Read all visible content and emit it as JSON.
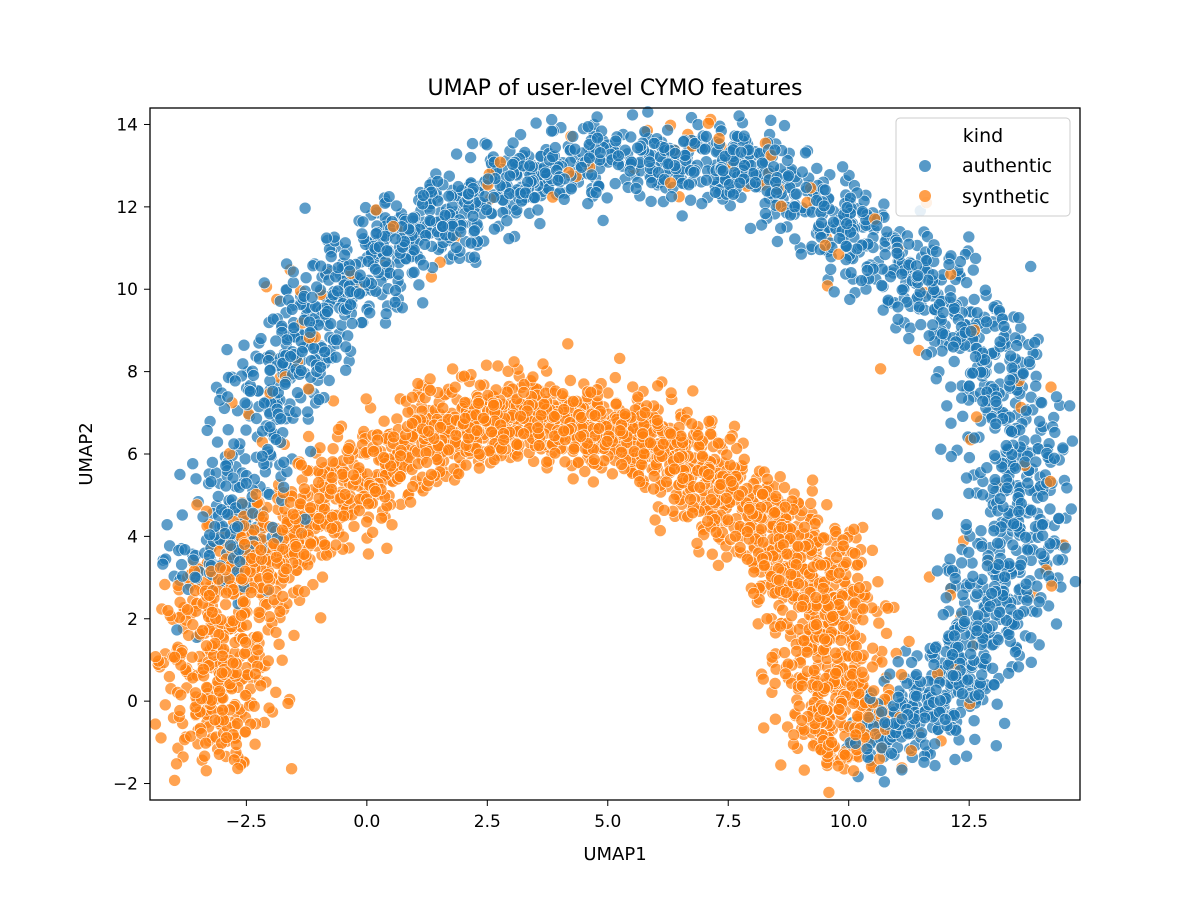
{
  "chart_data": {
    "type": "scatter",
    "title": "UMAP of user-level CYMO features",
    "xlabel": "UMAP1",
    "ylabel": "UMAP2",
    "xlim": [
      -4.5,
      14.8
    ],
    "ylim": [
      -2.4,
      14.4
    ],
    "x_ticks": [
      -2.5,
      0.0,
      2.5,
      5.0,
      7.5,
      10.0,
      12.5
    ],
    "x_tick_labels": [
      "−2.5",
      "0.0",
      "2.5",
      "5.0",
      "7.5",
      "10.0",
      "12.5"
    ],
    "y_ticks": [
      -2,
      0,
      2,
      4,
      6,
      8,
      10,
      12,
      14
    ],
    "y_tick_labels": [
      "−2",
      "0",
      "2",
      "4",
      "6",
      "8",
      "10",
      "12",
      "14"
    ],
    "grid": false,
    "legend": {
      "title": "kind",
      "placement": "top-right"
    },
    "series": [
      {
        "name": "authentic",
        "color": "#1f77b4",
        "approx_count": 2400,
        "clusters": [
          {
            "x": -3.3,
            "y": 2.8
          },
          {
            "x": -2.6,
            "y": 4.4
          },
          {
            "x": -2.2,
            "y": 7.2
          },
          {
            "x": -1.4,
            "y": 8.6
          },
          {
            "x": -0.6,
            "y": 10.0
          },
          {
            "x": 0.6,
            "y": 11.0
          },
          {
            "x": 1.6,
            "y": 11.7
          },
          {
            "x": 3.0,
            "y": 12.6
          },
          {
            "x": 4.5,
            "y": 13.2
          },
          {
            "x": 6.0,
            "y": 13.2
          },
          {
            "x": 7.5,
            "y": 13.0
          },
          {
            "x": 8.8,
            "y": 12.5
          },
          {
            "x": 10.0,
            "y": 11.6
          },
          {
            "x": 11.2,
            "y": 10.5
          },
          {
            "x": 12.3,
            "y": 9.3
          },
          {
            "x": 13.2,
            "y": 7.8
          },
          {
            "x": 13.6,
            "y": 6.0
          },
          {
            "x": 13.6,
            "y": 4.3
          },
          {
            "x": 13.1,
            "y": 2.5
          },
          {
            "x": 12.4,
            "y": 1.0
          },
          {
            "x": 11.5,
            "y": -0.2
          },
          {
            "x": 10.6,
            "y": -1.0
          }
        ]
      },
      {
        "name": "synthetic",
        "color": "#ff7f0e",
        "approx_count": 2600,
        "clusters": [
          {
            "x": -3.0,
            "y": -1.2
          },
          {
            "x": -3.2,
            "y": 0.6
          },
          {
            "x": -2.9,
            "y": 2.4
          },
          {
            "x": -2.0,
            "y": 3.6
          },
          {
            "x": -1.0,
            "y": 4.6
          },
          {
            "x": 0.0,
            "y": 5.6
          },
          {
            "x": 1.2,
            "y": 6.4
          },
          {
            "x": 2.5,
            "y": 6.8
          },
          {
            "x": 3.5,
            "y": 7.0
          },
          {
            "x": 4.5,
            "y": 6.6
          },
          {
            "x": 5.5,
            "y": 6.4
          },
          {
            "x": 6.5,
            "y": 5.9
          },
          {
            "x": 7.5,
            "y": 5.0
          },
          {
            "x": 8.5,
            "y": 4.0
          },
          {
            "x": 9.3,
            "y": 3.0
          },
          {
            "x": 9.6,
            "y": 1.5
          },
          {
            "x": 9.8,
            "y": 0.0
          },
          {
            "x": 10.0,
            "y": -1.0
          }
        ]
      }
    ]
  }
}
